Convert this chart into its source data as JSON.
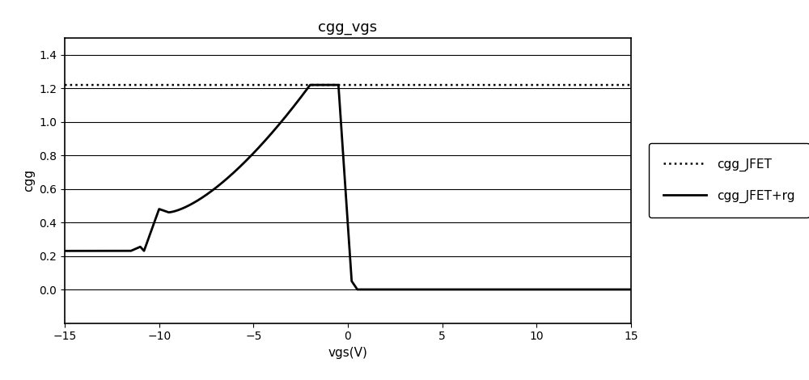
{
  "title": "cgg_vgs",
  "xlabel": "vgs(V)",
  "ylabel": "cgg",
  "xlim": [
    -15,
    15
  ],
  "ylim": [
    -0.2,
    1.5
  ],
  "yticks": [
    0,
    0.2,
    0.4,
    0.6,
    0.8,
    1.0,
    1.2,
    1.4
  ],
  "xticks": [
    -15,
    -10,
    -5,
    0,
    5,
    10,
    15
  ],
  "line_color": "#000000",
  "background_color": "#ffffff",
  "legend_labels": [
    "cgg_JFET",
    "cgg_JFET+rg"
  ],
  "legend_styles": [
    "dotted",
    "solid"
  ],
  "figsize": [
    10.0,
    4.7
  ],
  "dpi": 100
}
